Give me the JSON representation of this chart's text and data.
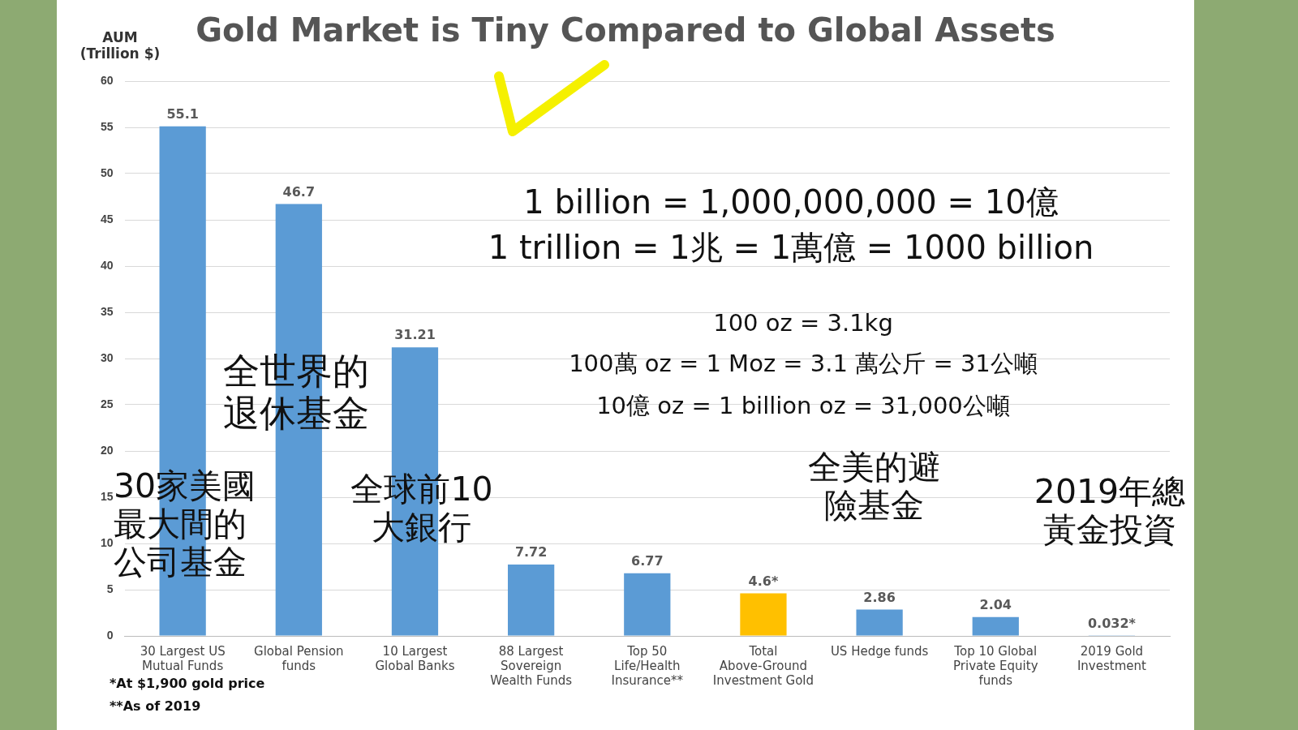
{
  "chart_data": {
    "type": "bar",
    "title": "Gold Market is Tiny Compared to Global Assets",
    "ylabel": "AUM (Trillion $)",
    "categories": [
      "30 Largest US Mutual Funds",
      "Global Pension funds",
      "10 Largest Global Banks",
      "88 Largest Sovereign Wealth Funds",
      "Top 50 Life/Health Insurance**",
      "Total Above-Ground Investment Gold",
      "US Hedge funds",
      "Top 10 Global Private Equity funds",
      "2019 Gold Investment"
    ],
    "values": [
      55.1,
      46.7,
      31.21,
      7.72,
      6.77,
      4.6,
      2.86,
      2.04,
      0.032
    ],
    "colors": [
      "#5b9bd5",
      "#5b9bd5",
      "#5b9bd5",
      "#5b9bd5",
      "#5b9bd5",
      "#ffc000",
      "#5b9bd5",
      "#5b9bd5",
      "#5b9bd5"
    ],
    "value_labels": [
      "55.1",
      "46.7",
      "31.21",
      "7.72",
      "6.77",
      "4.6*",
      "2.86",
      "2.04",
      "0.032*"
    ],
    "ylim": [
      0,
      60
    ],
    "yticks": [
      0,
      5,
      10,
      15,
      20,
      25,
      30,
      35,
      40,
      45,
      50,
      55,
      60
    ],
    "grid": "y",
    "legend": false,
    "annotations": [
      "1 billion = 1,000,000,000 = 10億",
      "1 trillion = 1兆 = 1萬億 = 1000 billion",
      "100 oz = 3.1kg",
      "100萬 oz = 1 Moz = 3.1 萬公斤 = 31公噸",
      "10億 oz = 1 billion oz = 31,000公噸",
      "全世界的退休基金",
      "30家美國最大間的公司基金",
      "全球前10大銀行",
      "全美的避險基金",
      "2019年總黃金投資",
      "*At $1,900 gold price",
      "**As of 2019"
    ]
  }
}
